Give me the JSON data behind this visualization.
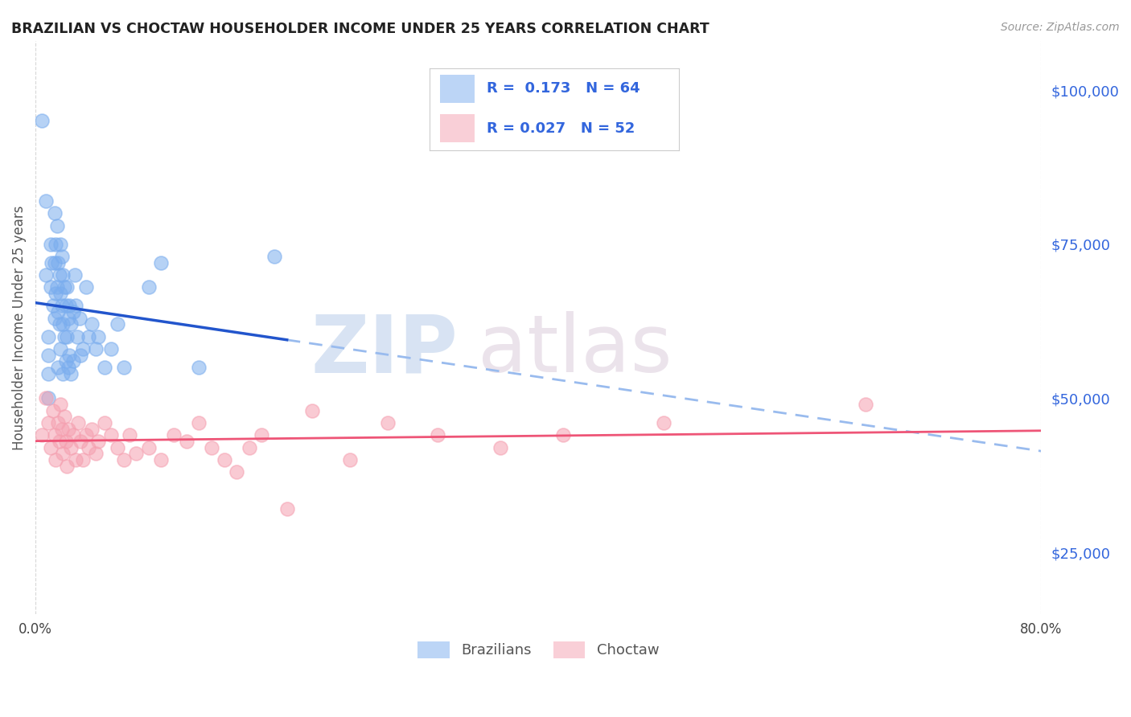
{
  "title": "BRAZILIAN VS CHOCTAW HOUSEHOLDER INCOME UNDER 25 YEARS CORRELATION CHART",
  "source": "Source: ZipAtlas.com",
  "ylabel": "Householder Income Under 25 years",
  "xlim": [
    0.0,
    0.8
  ],
  "ylim": [
    15000,
    108000
  ],
  "yticks": [
    25000,
    50000,
    75000,
    100000
  ],
  "ytick_labels": [
    "$25,000",
    "$50,000",
    "$75,000",
    "$100,000"
  ],
  "xtick_vals": [
    0.0,
    0.8
  ],
  "xtick_labels": [
    "0.0%",
    "80.0%"
  ],
  "background_color": "#ffffff",
  "grid_color": "#cccccc",
  "brazilians_color": "#7aadee",
  "choctaw_color": "#f5a0b0",
  "trend_brazilian_color": "#2255cc",
  "trend_choctaw_color": "#ee5577",
  "trend_dashed_color": "#99bbee",
  "R_brazilian": 0.173,
  "N_brazilian": 64,
  "R_choctaw": 0.027,
  "N_choctaw": 52,
  "legend_text_color": "#3366dd",
  "watermark_zip": "ZIP",
  "watermark_atlas": "atlas",
  "brazilians_x": [
    0.005,
    0.008,
    0.008,
    0.01,
    0.01,
    0.01,
    0.01,
    0.012,
    0.012,
    0.013,
    0.014,
    0.015,
    0.015,
    0.015,
    0.016,
    0.016,
    0.017,
    0.017,
    0.018,
    0.018,
    0.018,
    0.019,
    0.019,
    0.02,
    0.02,
    0.02,
    0.021,
    0.021,
    0.022,
    0.022,
    0.022,
    0.023,
    0.023,
    0.024,
    0.024,
    0.025,
    0.025,
    0.026,
    0.026,
    0.027,
    0.027,
    0.028,
    0.028,
    0.03,
    0.03,
    0.031,
    0.032,
    0.033,
    0.035,
    0.036,
    0.038,
    0.04,
    0.042,
    0.045,
    0.048,
    0.05,
    0.055,
    0.06,
    0.065,
    0.07,
    0.09,
    0.1,
    0.13,
    0.19
  ],
  "brazilians_y": [
    95000,
    82000,
    70000,
    60000,
    57000,
    54000,
    50000,
    75000,
    68000,
    72000,
    65000,
    80000,
    72000,
    63000,
    75000,
    67000,
    78000,
    68000,
    72000,
    64000,
    55000,
    70000,
    62000,
    75000,
    67000,
    58000,
    73000,
    65000,
    70000,
    62000,
    54000,
    68000,
    60000,
    65000,
    56000,
    68000,
    60000,
    63000,
    55000,
    65000,
    57000,
    62000,
    54000,
    64000,
    56000,
    70000,
    65000,
    60000,
    63000,
    57000,
    58000,
    68000,
    60000,
    62000,
    58000,
    60000,
    55000,
    58000,
    62000,
    55000,
    68000,
    72000,
    55000,
    73000
  ],
  "choctaw_x": [
    0.005,
    0.008,
    0.01,
    0.012,
    0.014,
    0.015,
    0.016,
    0.018,
    0.019,
    0.02,
    0.021,
    0.022,
    0.023,
    0.024,
    0.025,
    0.026,
    0.028,
    0.03,
    0.032,
    0.034,
    0.036,
    0.038,
    0.04,
    0.042,
    0.045,
    0.048,
    0.05,
    0.055,
    0.06,
    0.065,
    0.07,
    0.075,
    0.08,
    0.09,
    0.1,
    0.11,
    0.12,
    0.13,
    0.14,
    0.15,
    0.16,
    0.17,
    0.18,
    0.2,
    0.22,
    0.25,
    0.28,
    0.32,
    0.37,
    0.42,
    0.5,
    0.66
  ],
  "choctaw_y": [
    44000,
    50000,
    46000,
    42000,
    48000,
    44000,
    40000,
    46000,
    43000,
    49000,
    45000,
    41000,
    47000,
    43000,
    39000,
    45000,
    42000,
    44000,
    40000,
    46000,
    43000,
    40000,
    44000,
    42000,
    45000,
    41000,
    43000,
    46000,
    44000,
    42000,
    40000,
    44000,
    41000,
    42000,
    40000,
    44000,
    43000,
    46000,
    42000,
    40000,
    38000,
    42000,
    44000,
    32000,
    48000,
    40000,
    46000,
    44000,
    42000,
    44000,
    46000,
    49000
  ]
}
